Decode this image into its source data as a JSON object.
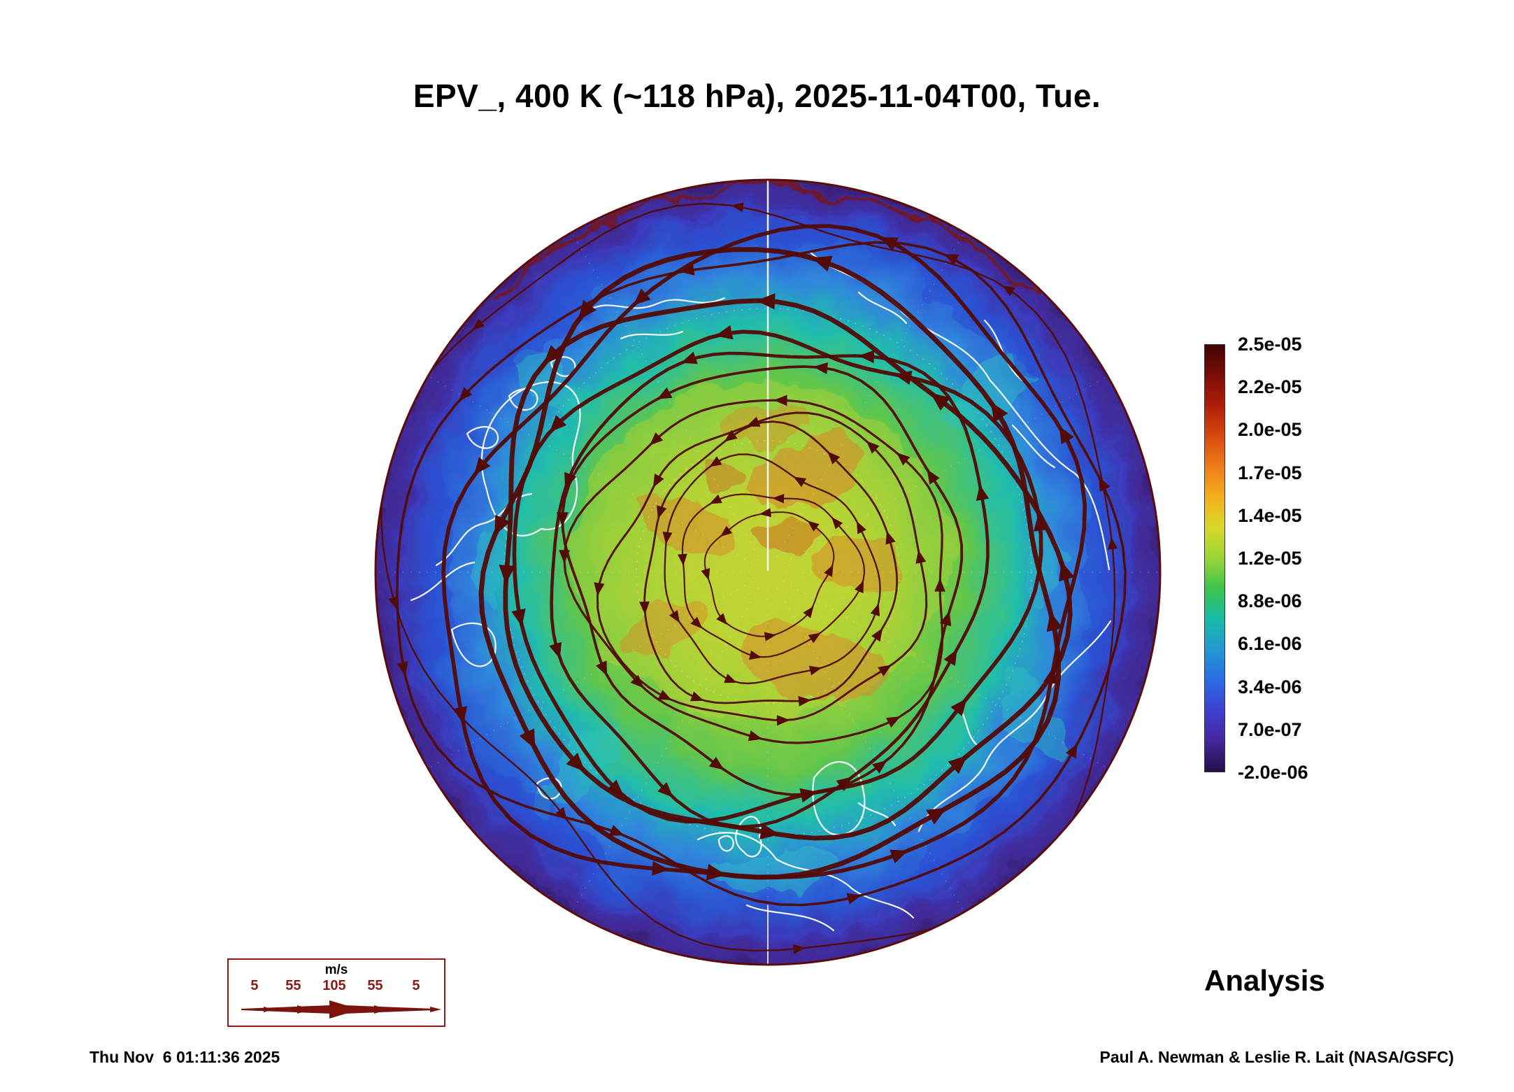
{
  "title": "EPV_, 400 K (~118 hPa), 2025-11-04T00, Tue.",
  "analysis_label": "Analysis",
  "timestamp": "Thu Nov  6 01:11:36 2025",
  "credit": "Paul A. Newman & Leslie R. Lait (NASA/GSFC)",
  "colorbar": {
    "ticks": [
      "2.5e-05",
      "2.2e-05",
      "2.0e-05",
      "1.7e-05",
      "1.4e-05",
      "1.2e-05",
      "8.8e-06",
      "6.1e-06",
      "3.4e-06",
      "7.0e-07",
      "-2.0e-06"
    ],
    "colors": [
      "#400505",
      "#7a0d07",
      "#b01e0a",
      "#d84a10",
      "#ee7d19",
      "#f2b01c",
      "#d8d829",
      "#9ad437",
      "#3cc44d",
      "#17bba8",
      "#2398d2",
      "#2a6ce4",
      "#3f3fd2",
      "#45269c",
      "#221047"
    ]
  },
  "wind_legend": {
    "units_label": "m/s",
    "speed_labels": [
      "5",
      "55",
      "105",
      "55",
      "5"
    ]
  },
  "map": {
    "streamline_color": "#520b07",
    "coastline_color": "#ffffff",
    "rim_color": "#5c0b0b"
  },
  "chart_data": {
    "type": "heatmap",
    "title": "EPV_, 400 K (~118 hPa), 2025-11-04T00, Tue.",
    "quantity": "EPV_",
    "level": "400 K (~118 hPa)",
    "valid_time": "2025-11-04T00, Tue.",
    "analysis_type": "Analysis",
    "projection": "Northern Hemisphere polar view, circular disk, field shaded by EPV value",
    "colorbar": {
      "orientation": "vertical, right side",
      "ticks_top_to_bottom": [
        "2.5e-05",
        "2.2e-05",
        "2.0e-05",
        "1.7e-05",
        "1.4e-05",
        "1.2e-05",
        "8.8e-06",
        "6.1e-06",
        "3.4e-06",
        "7.0e-07",
        "-2.0e-06"
      ],
      "scale": "rainbow: dark red (high, pole interior) through yellow-green to blue/dark purple (low, outer rim)"
    },
    "overlays": [
      "dark red wind streamlines circling the pole with arrowheads, line thickness indicates wind speed per m/s legend",
      "white coastlines",
      "dotted white graticule with solid central meridian"
    ],
    "wind_speed_legend": {
      "units": "m/s",
      "values": [
        5,
        55,
        105,
        55,
        5
      ]
    },
    "generated_stamp": "Thu Nov  6 01:11:36 2025",
    "credit": "Paul A. Newman & Leslie R. Lait (NASA/GSFC)"
  }
}
